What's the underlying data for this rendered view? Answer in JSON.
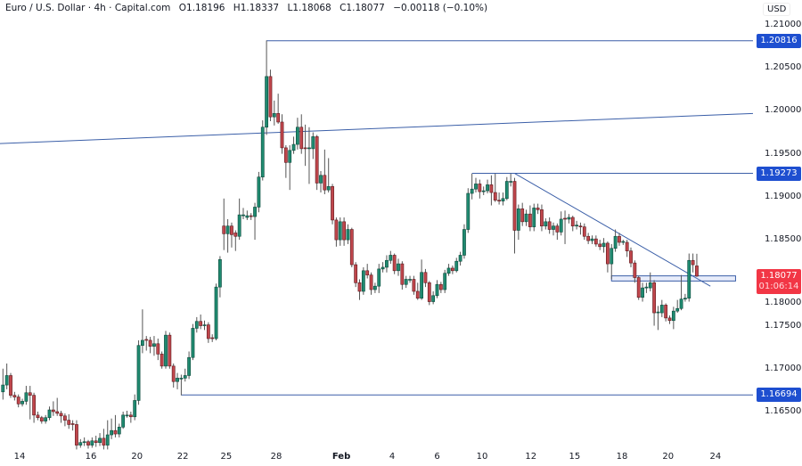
{
  "header": {
    "symbol": "Euro / U.S. Dollar · 4h · Capital.com",
    "open": "O1.18196",
    "high": "H1.18337",
    "low": "L1.18068",
    "close": "C1.18077",
    "change": "−0.00118 (−0.10%)"
  },
  "axis": {
    "currency": "USD",
    "y_ticks": [
      "1.21000",
      "1.20500",
      "1.20000",
      "1.19500",
      "1.19000",
      "1.18500",
      "1.18000",
      "1.17500",
      "1.17000",
      "1.16500"
    ],
    "x_ticks": [
      "14",
      "16",
      "20",
      "22",
      "25",
      "28",
      "Feb",
      "4",
      "6",
      "10",
      "12",
      "15",
      "18",
      "20",
      "24"
    ]
  },
  "price_badges": [
    {
      "label": "1.20816",
      "price": 1.20816
    },
    {
      "label": "1.19273",
      "price": 1.19273
    },
    {
      "label": "1.16694",
      "price": 1.16694
    }
  ],
  "current_price": {
    "label": "1.18077",
    "countdown": "01:06:14",
    "price": 1.18077
  },
  "colors": {
    "up": "#1f8a70",
    "down": "#c0464c",
    "line": "#3b5fa8",
    "badge_blue": "#1e4fd0",
    "badge_red": "#f23645"
  },
  "chart_data": {
    "type": "candlestick",
    "timeframe": "4h",
    "ylim": [
      1.1612,
      1.2129
    ],
    "grid": false,
    "candles": [
      [
        1.1673,
        1.17,
        1.1664,
        1.1681
      ],
      [
        1.1681,
        1.1706,
        1.1676,
        1.1692
      ],
      [
        1.1692,
        1.1695,
        1.1666,
        1.1669
      ],
      [
        1.1669,
        1.1673,
        1.1663,
        1.1667
      ],
      [
        1.1667,
        1.167,
        1.1655,
        1.1659
      ],
      [
        1.1659,
        1.1665,
        1.1656,
        1.1662
      ],
      [
        1.1662,
        1.168,
        1.1658,
        1.1672
      ],
      [
        1.1672,
        1.168,
        1.1641,
        1.1669
      ],
      [
        1.1669,
        1.1672,
        1.1637,
        1.1646
      ],
      [
        1.1646,
        1.165,
        1.164,
        1.1643
      ],
      [
        1.1643,
        1.1645,
        1.1636,
        1.1639
      ],
      [
        1.1639,
        1.1646,
        1.1636,
        1.1643
      ],
      [
        1.1643,
        1.1656,
        1.164,
        1.1652
      ],
      [
        1.1652,
        1.1662,
        1.1645,
        1.165
      ],
      [
        1.165,
        1.1666,
        1.1645,
        1.1648
      ],
      [
        1.1648,
        1.1651,
        1.1637,
        1.1645
      ],
      [
        1.1645,
        1.1648,
        1.1633,
        1.164
      ],
      [
        1.164,
        1.1647,
        1.163,
        1.1635
      ],
      [
        1.1636,
        1.164,
        1.1628,
        1.1635
      ],
      [
        1.1635,
        1.164,
        1.1606,
        1.1611
      ],
      [
        1.1611,
        1.1618,
        1.1608,
        1.1614
      ],
      [
        1.1614,
        1.162,
        1.161,
        1.1615
      ],
      [
        1.1615,
        1.1617,
        1.1607,
        1.1611
      ],
      [
        1.1611,
        1.162,
        1.1608,
        1.1616
      ],
      [
        1.1616,
        1.1622,
        1.1609,
        1.1614
      ],
      [
        1.1614,
        1.1625,
        1.161,
        1.1619
      ],
      [
        1.1619,
        1.163,
        1.1606,
        1.1611
      ],
      [
        1.1611,
        1.164,
        1.1606,
        1.1623
      ],
      [
        1.1623,
        1.1642,
        1.1618,
        1.1628
      ],
      [
        1.1628,
        1.1646,
        1.162,
        1.1624
      ],
      [
        1.1624,
        1.1636,
        1.162,
        1.1632
      ],
      [
        1.1632,
        1.165,
        1.163,
        1.1646
      ],
      [
        1.1645,
        1.1651,
        1.1643,
        1.1646
      ],
      [
        1.1646,
        1.165,
        1.1637,
        1.1644
      ],
      [
        1.1644,
        1.167,
        1.164,
        1.1663
      ],
      [
        1.1663,
        1.1733,
        1.1658,
        1.1727
      ],
      [
        1.1727,
        1.1769,
        1.1718,
        1.1733
      ],
      [
        1.1734,
        1.1738,
        1.1721,
        1.1733
      ],
      [
        1.1733,
        1.1737,
        1.1718,
        1.1726
      ],
      [
        1.1726,
        1.1738,
        1.1715,
        1.1729
      ],
      [
        1.1729,
        1.1735,
        1.171,
        1.1717
      ],
      [
        1.1717,
        1.172,
        1.17,
        1.1703
      ],
      [
        1.1703,
        1.1744,
        1.17,
        1.1739
      ],
      [
        1.1739,
        1.1742,
        1.17,
        1.1703
      ],
      [
        1.1703,
        1.1706,
        1.1678,
        1.1685
      ],
      [
        1.1685,
        1.1695,
        1.1676,
        1.1689
      ],
      [
        1.1688,
        1.1693,
        1.1669,
        1.1689
      ],
      [
        1.1689,
        1.17,
        1.1685,
        1.1692
      ],
      [
        1.1692,
        1.172,
        1.1688,
        1.1713
      ],
      [
        1.1713,
        1.1752,
        1.171,
        1.1747
      ],
      [
        1.1747,
        1.176,
        1.1742,
        1.1755
      ],
      [
        1.1755,
        1.1763,
        1.1746,
        1.175
      ],
      [
        1.175,
        1.1756,
        1.1745,
        1.1751
      ],
      [
        1.1751,
        1.1754,
        1.173,
        1.1735
      ],
      [
        1.1736,
        1.174,
        1.1731,
        1.1735
      ],
      [
        1.1735,
        1.1799,
        1.1733,
        1.1795
      ],
      [
        1.1795,
        1.1831,
        1.1783,
        1.1827
      ],
      [
        1.1866,
        1.1898,
        1.1838,
        1.1857
      ],
      [
        1.1857,
        1.1874,
        1.1835,
        1.1866
      ],
      [
        1.1866,
        1.187,
        1.1841,
        1.1856
      ],
      [
        1.1858,
        1.1861,
        1.1837,
        1.1854
      ],
      [
        1.1854,
        1.1898,
        1.185,
        1.1879
      ],
      [
        1.1878,
        1.1887,
        1.1874,
        1.1879
      ],
      [
        1.1876,
        1.1884,
        1.1873,
        1.1878
      ],
      [
        1.1878,
        1.1881,
        1.1873,
        1.1877
      ],
      [
        1.1877,
        1.1893,
        1.185,
        1.1888
      ],
      [
        1.1888,
        1.1929,
        1.1882,
        1.1923
      ],
      [
        1.1923,
        1.1989,
        1.1919,
        1.1981
      ],
      [
        1.1981,
        1.2082,
        1.1972,
        1.204
      ],
      [
        1.204,
        1.2048,
        1.1988,
        1.1993
      ],
      [
        1.1993,
        1.2012,
        1.1983,
        1.1997
      ],
      [
        1.1997,
        1.202,
        1.1985,
        1.1987
      ],
      [
        1.1987,
        1.1996,
        1.195,
        1.1957
      ],
      [
        1.1957,
        1.196,
        1.1922,
        1.194
      ],
      [
        1.194,
        1.196,
        1.1908,
        1.1954
      ],
      [
        1.1954,
        1.197,
        1.195,
        1.1961
      ],
      [
        1.1961,
        1.1992,
        1.1955,
        1.1981
      ],
      [
        1.1981,
        1.1996,
        1.195,
        1.1956
      ],
      [
        1.1957,
        1.1984,
        1.1936,
        1.1956
      ],
      [
        1.1956,
        1.1981,
        1.1915,
        1.1957
      ],
      [
        1.1956,
        1.1975,
        1.1944,
        1.197
      ],
      [
        1.197,
        1.1972,
        1.1908,
        1.1916
      ],
      [
        1.1916,
        1.193,
        1.1905,
        1.1925
      ],
      [
        1.1925,
        1.1955,
        1.1903,
        1.1908
      ],
      [
        1.1908,
        1.1945,
        1.1905,
        1.1912
      ],
      [
        1.1912,
        1.1915,
        1.1868,
        1.1873
      ],
      [
        1.1873,
        1.1876,
        1.1842,
        1.185
      ],
      [
        1.185,
        1.1876,
        1.1843,
        1.1871
      ],
      [
        1.1871,
        1.1876,
        1.1843,
        1.185
      ],
      [
        1.185,
        1.1868,
        1.1845,
        1.1862
      ],
      [
        1.1862,
        1.1864,
        1.1818,
        1.1821
      ],
      [
        1.1821,
        1.1824,
        1.1795,
        1.18
      ],
      [
        1.18,
        1.1804,
        1.178,
        1.179
      ],
      [
        1.179,
        1.1818,
        1.1786,
        1.1814
      ],
      [
        1.1814,
        1.1822,
        1.1805,
        1.1809
      ],
      [
        1.1809,
        1.1812,
        1.1786,
        1.1792
      ],
      [
        1.1792,
        1.18,
        1.1788,
        1.1796
      ],
      [
        1.1796,
        1.1822,
        1.1788,
        1.1816
      ],
      [
        1.1816,
        1.1824,
        1.1812,
        1.1818
      ],
      [
        1.1818,
        1.1832,
        1.1812,
        1.1826
      ],
      [
        1.1826,
        1.1837,
        1.1822,
        1.1832
      ],
      [
        1.1832,
        1.1834,
        1.181,
        1.1814
      ],
      [
        1.1814,
        1.1828,
        1.1808,
        1.1822
      ],
      [
        1.1822,
        1.1825,
        1.1792,
        1.1798
      ],
      [
        1.1798,
        1.1808,
        1.1794,
        1.1804
      ],
      [
        1.1803,
        1.1808,
        1.18,
        1.1804
      ],
      [
        1.1804,
        1.1808,
        1.1786,
        1.179
      ],
      [
        1.179,
        1.18,
        1.178,
        1.1782
      ],
      [
        1.1782,
        1.1827,
        1.178,
        1.1812
      ],
      [
        1.1812,
        1.1816,
        1.1795,
        1.18
      ],
      [
        1.18,
        1.1802,
        1.1774,
        1.1778
      ],
      [
        1.1778,
        1.179,
        1.1775,
        1.1785
      ],
      [
        1.1785,
        1.1803,
        1.1782,
        1.1798
      ],
      [
        1.1798,
        1.1801,
        1.1788,
        1.1792
      ],
      [
        1.1792,
        1.1815,
        1.1788,
        1.1811
      ],
      [
        1.1811,
        1.1822,
        1.1808,
        1.1817
      ],
      [
        1.1817,
        1.182,
        1.181,
        1.1814
      ],
      [
        1.1814,
        1.1829,
        1.1812,
        1.1825
      ],
      [
        1.1825,
        1.1836,
        1.182,
        1.1832
      ],
      [
        1.1832,
        1.1868,
        1.1828,
        1.1862
      ],
      [
        1.1862,
        1.191,
        1.1858,
        1.1904
      ],
      [
        1.1904,
        1.1927,
        1.1897,
        1.1909
      ],
      [
        1.1909,
        1.1922,
        1.1905,
        1.1915
      ],
      [
        1.1915,
        1.192,
        1.1898,
        1.1906
      ],
      [
        1.1906,
        1.1912,
        1.1902,
        1.1907
      ],
      [
        1.1907,
        1.192,
        1.1904,
        1.1914
      ],
      [
        1.1914,
        1.1925,
        1.189,
        1.1905
      ],
      [
        1.1905,
        1.1927,
        1.1894,
        1.1896
      ],
      [
        1.1896,
        1.1905,
        1.1891,
        1.1895
      ],
      [
        1.1895,
        1.1905,
        1.189,
        1.1898
      ],
      [
        1.1898,
        1.1923,
        1.1896,
        1.1918
      ],
      [
        1.1917,
        1.1927,
        1.1912,
        1.1918
      ],
      [
        1.1918,
        1.1922,
        1.1834,
        1.1861
      ],
      [
        1.1861,
        1.1891,
        1.185,
        1.1886
      ],
      [
        1.1886,
        1.1893,
        1.1866,
        1.1871
      ],
      [
        1.1871,
        1.1885,
        1.1866,
        1.188
      ],
      [
        1.188,
        1.189,
        1.186,
        1.1865
      ],
      [
        1.1865,
        1.1892,
        1.186,
        1.1887
      ],
      [
        1.1887,
        1.1892,
        1.188,
        1.1885
      ],
      [
        1.1885,
        1.1891,
        1.186,
        1.1866
      ],
      [
        1.1866,
        1.1875,
        1.1862,
        1.1871
      ],
      [
        1.1871,
        1.1876,
        1.1857,
        1.1862
      ],
      [
        1.1862,
        1.187,
        1.1855,
        1.1866
      ],
      [
        1.1866,
        1.1869,
        1.185,
        1.1859
      ],
      [
        1.1859,
        1.1883,
        1.1855,
        1.1874
      ],
      [
        1.1875,
        1.1884,
        1.1845,
        1.1874
      ],
      [
        1.1874,
        1.188,
        1.1869,
        1.1876
      ],
      [
        1.1876,
        1.1878,
        1.186,
        1.1866
      ],
      [
        1.1866,
        1.1872,
        1.1862,
        1.1867
      ],
      [
        1.1866,
        1.187,
        1.1856,
        1.1865
      ],
      [
        1.1865,
        1.1869,
        1.185,
        1.1854
      ],
      [
        1.1854,
        1.1858,
        1.1845,
        1.1849
      ],
      [
        1.1849,
        1.1855,
        1.1845,
        1.1851
      ],
      [
        1.1851,
        1.1855,
        1.1842,
        1.1845
      ],
      [
        1.1845,
        1.185,
        1.1838,
        1.1842
      ],
      [
        1.1842,
        1.1852,
        1.1835,
        1.1846
      ],
      [
        1.1846,
        1.1848,
        1.1812,
        1.1822
      ],
      [
        1.1822,
        1.1845,
        1.1804,
        1.184
      ],
      [
        1.184,
        1.1862,
        1.1836,
        1.1854
      ],
      [
        1.1854,
        1.1858,
        1.1843,
        1.1847
      ],
      [
        1.1847,
        1.185,
        1.1844,
        1.1848
      ],
      [
        1.1847,
        1.185,
        1.183,
        1.1837
      ],
      [
        1.1837,
        1.1841,
        1.1818,
        1.1823
      ],
      [
        1.1823,
        1.1826,
        1.18,
        1.1806
      ],
      [
        1.1806,
        1.1808,
        1.178,
        1.1783
      ],
      [
        1.1783,
        1.18,
        1.1778,
        1.1794
      ],
      [
        1.1794,
        1.18,
        1.1788,
        1.1795
      ],
      [
        1.1794,
        1.1812,
        1.179,
        1.18
      ],
      [
        1.18,
        1.1803,
        1.175,
        1.1765
      ],
      [
        1.1765,
        1.1773,
        1.1745,
        1.1766
      ],
      [
        1.1765,
        1.178,
        1.176,
        1.1774
      ],
      [
        1.1774,
        1.1776,
        1.1755,
        1.1759
      ],
      [
        1.1759,
        1.1762,
        1.1752,
        1.1756
      ],
      [
        1.1756,
        1.1772,
        1.1746,
        1.1767
      ],
      [
        1.1767,
        1.178,
        1.1765,
        1.177
      ],
      [
        1.177,
        1.1809,
        1.1768,
        1.1781
      ],
      [
        1.1781,
        1.1787,
        1.1778,
        1.1782
      ],
      [
        1.1782,
        1.1834,
        1.1778,
        1.1826
      ],
      [
        1.1826,
        1.1834,
        1.1812,
        1.1821
      ],
      [
        1.18196,
        1.18337,
        1.18068,
        1.18077
      ]
    ],
    "drawings": {
      "horizontal_rays": [
        {
          "from_candle": 68,
          "price": 1.20816
        },
        {
          "from_candle": 121,
          "price": 1.19273
        },
        {
          "from_candle": 46,
          "price": 1.16694
        }
      ],
      "trendlines": [
        {
          "c1": -0.8,
          "p1": 1.1962,
          "c2": 193.5,
          "p2": 1.1997
        },
        {
          "c1": 132,
          "p1": 1.19273,
          "c2": 182.5,
          "p2": 1.1796
        }
      ],
      "zones": [
        {
          "c1": 157,
          "c2": 189,
          "p_top": 1.1808,
          "p_bottom": 1.1802
        }
      ]
    }
  }
}
